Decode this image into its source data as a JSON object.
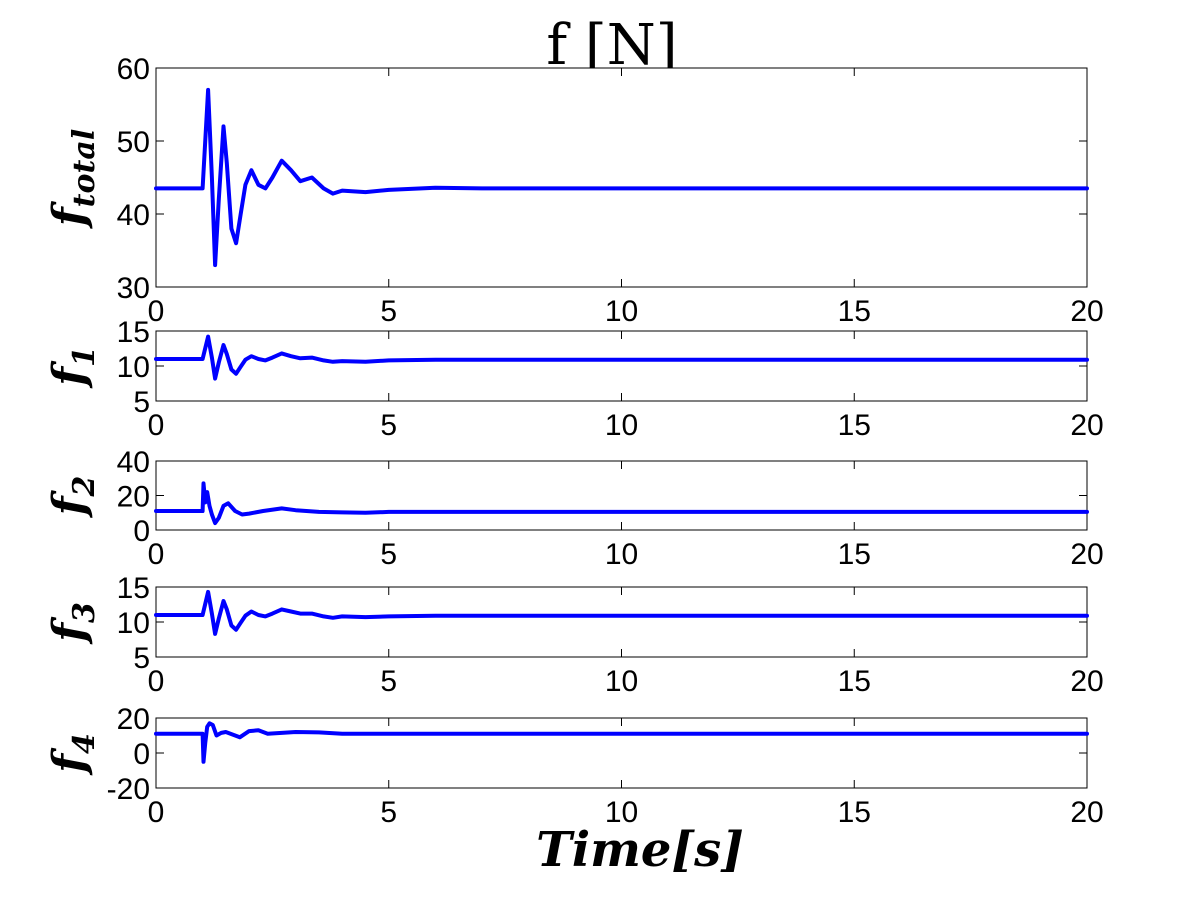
{
  "figure": {
    "title": "f [N]",
    "xlabel": "Time[s]"
  },
  "chart_data": [
    {
      "type": "line",
      "ylabel_main": "f",
      "ylabel_sub": "total",
      "xlim": [
        0,
        20
      ],
      "ylim": [
        30,
        60
      ],
      "xticks": [
        "0",
        "5",
        "10",
        "15",
        "20"
      ],
      "yticks": [
        "30",
        "40",
        "50",
        "60"
      ],
      "color": "#0000ff",
      "series": [
        {
          "x": [
            0,
            1.0,
            1.12,
            1.2,
            1.27,
            1.35,
            1.45,
            1.52,
            1.62,
            1.72,
            1.82,
            1.92,
            2.05,
            2.2,
            2.35,
            2.5,
            2.7,
            2.9,
            3.1,
            3.35,
            3.6,
            3.8,
            4.0,
            4.5,
            5.0,
            6.0,
            7.0,
            20
          ],
          "y": [
            43.5,
            43.5,
            57.0,
            45.0,
            33.0,
            42.0,
            52.0,
            47.0,
            38.0,
            36.0,
            40.0,
            44.0,
            46.0,
            44.0,
            43.5,
            45.0,
            47.3,
            46.0,
            44.5,
            45.0,
            43.5,
            42.8,
            43.2,
            43.0,
            43.3,
            43.6,
            43.5,
            43.5
          ]
        }
      ]
    },
    {
      "type": "line",
      "ylabel_main": "f",
      "ylabel_sub": "1",
      "xlim": [
        0,
        20
      ],
      "ylim": [
        5,
        15
      ],
      "xticks": [
        "0",
        "5",
        "10",
        "15",
        "20"
      ],
      "yticks": [
        "5",
        "10",
        "15"
      ],
      "color": "#0000ff",
      "series": [
        {
          "x": [
            0,
            1.0,
            1.12,
            1.2,
            1.27,
            1.35,
            1.45,
            1.52,
            1.62,
            1.72,
            1.82,
            1.92,
            2.05,
            2.2,
            2.35,
            2.5,
            2.7,
            2.9,
            3.1,
            3.35,
            3.6,
            3.8,
            4.0,
            4.5,
            5.0,
            6.0,
            7.0,
            20
          ],
          "y": [
            11.0,
            11.0,
            14.2,
            11.2,
            8.2,
            10.5,
            13.0,
            11.7,
            9.5,
            8.9,
            9.9,
            10.9,
            11.4,
            11.0,
            10.8,
            11.2,
            11.8,
            11.4,
            11.1,
            11.2,
            10.8,
            10.6,
            10.7,
            10.6,
            10.8,
            10.9,
            10.9,
            10.9
          ]
        }
      ]
    },
    {
      "type": "line",
      "ylabel_main": "f",
      "ylabel_sub": "2",
      "xlim": [
        0,
        20
      ],
      "ylim": [
        0,
        40
      ],
      "xticks": [
        "0",
        "5",
        "10",
        "15",
        "20"
      ],
      "yticks": [
        "0",
        "20",
        "40"
      ],
      "color": "#0000ff",
      "series": [
        {
          "x": [
            0,
            1.0,
            1.02,
            1.06,
            1.1,
            1.15,
            1.2,
            1.27,
            1.35,
            1.45,
            1.55,
            1.7,
            1.85,
            2.0,
            2.3,
            2.7,
            3.0,
            3.5,
            4.0,
            4.5,
            5.0,
            20
          ],
          "y": [
            11.0,
            11.0,
            27.0,
            16.0,
            22.0,
            14.0,
            9.0,
            4.0,
            7.0,
            14.0,
            15.5,
            11.0,
            9.0,
            9.5,
            11.0,
            12.5,
            11.5,
            10.5,
            10.2,
            10.0,
            10.5,
            10.5
          ]
        }
      ]
    },
    {
      "type": "line",
      "ylabel_main": "f",
      "ylabel_sub": "3",
      "xlim": [
        0,
        20
      ],
      "ylim": [
        5,
        15
      ],
      "xticks": [
        "0",
        "5",
        "10",
        "15",
        "20"
      ],
      "yticks": [
        "5",
        "10",
        "15"
      ],
      "color": "#0000ff",
      "series": [
        {
          "x": [
            0,
            1.0,
            1.12,
            1.2,
            1.27,
            1.35,
            1.45,
            1.52,
            1.62,
            1.72,
            1.82,
            1.92,
            2.05,
            2.2,
            2.35,
            2.5,
            2.7,
            2.9,
            3.1,
            3.35,
            3.6,
            3.8,
            4.0,
            4.5,
            5.0,
            6.0,
            7.0,
            20
          ],
          "y": [
            11.0,
            11.0,
            14.3,
            11.2,
            8.3,
            10.5,
            13.0,
            11.8,
            9.5,
            8.9,
            9.9,
            10.9,
            11.5,
            11.0,
            10.8,
            11.2,
            11.8,
            11.5,
            11.2,
            11.2,
            10.8,
            10.6,
            10.8,
            10.7,
            10.8,
            10.9,
            10.9,
            10.9
          ]
        }
      ]
    },
    {
      "type": "line",
      "ylabel_main": "f",
      "ylabel_sub": "4",
      "xlim": [
        0,
        20
      ],
      "ylim": [
        -20,
        20
      ],
      "xticks": [
        "0",
        "5",
        "10",
        "15",
        "20"
      ],
      "yticks": [
        "-20",
        "0",
        "20"
      ],
      "color": "#0000ff",
      "series": [
        {
          "x": [
            0,
            1.0,
            1.02,
            1.06,
            1.1,
            1.15,
            1.22,
            1.3,
            1.4,
            1.5,
            1.65,
            1.8,
            2.0,
            2.2,
            2.4,
            2.7,
            3.0,
            3.5,
            4.0,
            5.0,
            20
          ],
          "y": [
            11.0,
            11.0,
            -5.0,
            6.0,
            15.0,
            17.0,
            16.0,
            10.0,
            11.5,
            12.0,
            10.5,
            9.0,
            12.5,
            13.0,
            11.0,
            11.5,
            12.0,
            11.8,
            11.0,
            11.0,
            11.0
          ]
        }
      ]
    }
  ]
}
